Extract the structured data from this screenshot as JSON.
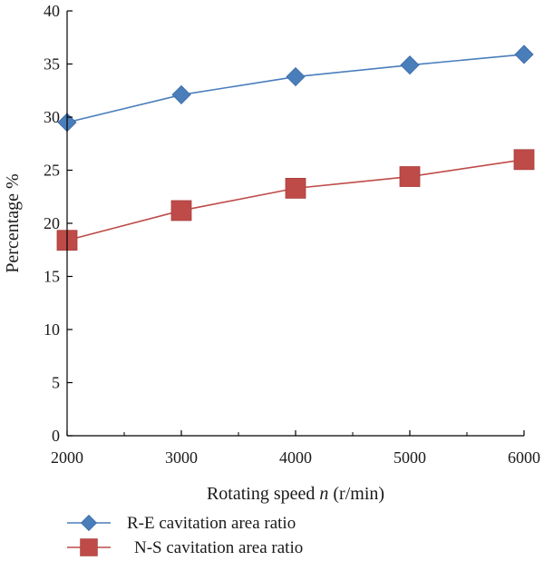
{
  "chart_data": {
    "type": "line",
    "title": "",
    "xlabel_pre": "Rotating speed ",
    "xlabel_var": "n",
    "xlabel_post": " (r/min)",
    "ylabel": "Percentage %",
    "x": [
      2000,
      3000,
      4000,
      5000,
      6000
    ],
    "xlim": [
      2000,
      6000
    ],
    "ylim": [
      0,
      40
    ],
    "x_ticks": [
      "2000",
      "3000",
      "4000",
      "5000",
      "6000"
    ],
    "y_ticks": [
      "0",
      "5",
      "10",
      "15",
      "20",
      "25",
      "30",
      "35",
      "40"
    ],
    "grid": false,
    "legend_position": "bottom",
    "series": [
      {
        "name": "R-E cavitation area ratio",
        "marker": "diamond",
        "color": "#4a7ebb",
        "values": [
          29.5,
          32.1,
          33.8,
          34.9,
          35.9
        ]
      },
      {
        "name": "N-S cavitation area ratio",
        "marker": "square",
        "color": "#be4b48",
        "values": [
          18.4,
          21.2,
          23.3,
          24.4,
          26.0
        ]
      }
    ]
  }
}
